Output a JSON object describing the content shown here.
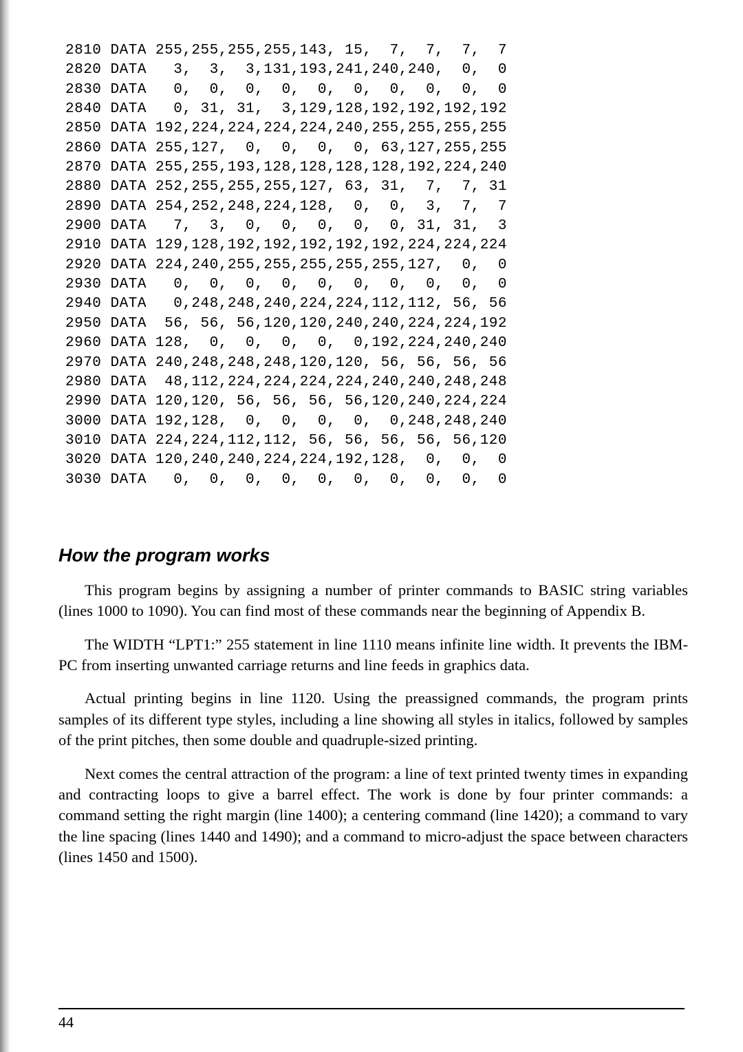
{
  "code": [
    "2810 DATA 255,255,255,255,143, 15,  7,  7,  7,  7",
    "2820 DATA   3,  3,  3,131,193,241,240,240,  0,  0",
    "2830 DATA   0,  0,  0,  0,  0,  0,  0,  0,  0,  0",
    "2840 DATA   0, 31, 31,  3,129,128,192,192,192,192",
    "2850 DATA 192,224,224,224,224,240,255,255,255,255",
    "2860 DATA 255,127,  0,  0,  0,  0, 63,127,255,255",
    "2870 DATA 255,255,193,128,128,128,128,192,224,240",
    "2880 DATA 252,255,255,255,127, 63, 31,  7,  7, 31",
    "2890 DATA 254,252,248,224,128,  0,  0,  3,  7,  7",
    "2900 DATA   7,  3,  0,  0,  0,  0,  0, 31, 31,  3",
    "2910 DATA 129,128,192,192,192,192,192,224,224,224",
    "2920 DATA 224,240,255,255,255,255,255,127,  0,  0",
    "2930 DATA   0,  0,  0,  0,  0,  0,  0,  0,  0,  0",
    "2940 DATA   0,248,248,240,224,224,112,112, 56, 56",
    "2950 DATA  56, 56, 56,120,120,240,240,224,224,192",
    "2960 DATA 128,  0,  0,  0,  0,  0,192,224,240,240",
    "2970 DATA 240,248,248,248,120,120, 56, 56, 56, 56",
    "2980 DATA  48,112,224,224,224,224,240,240,248,248",
    "2990 DATA 120,120, 56, 56, 56, 56,120,240,224,224",
    "3000 DATA 192,128,  0,  0,  0,  0,  0,248,248,240",
    "3010 DATA 224,224,112,112, 56, 56, 56, 56, 56,120",
    "3020 DATA 120,240,240,224,224,192,128,  0,  0,  0",
    "3030 DATA   0,  0,  0,  0,  0,  0,  0,  0,  0,  0"
  ],
  "heading": "How the program works",
  "paragraphs": [
    "This program begins by assigning a number of printer commands to BASIC string variables (lines 1000 to 1090). You can find most of these commands near the beginning of Appendix B.",
    "The WIDTH “LPT1:” 255 statement in line 1110 means infinite line width. It prevents the IBM-PC from inserting unwanted carriage returns and line feeds in graphics data.",
    "Actual printing begins in line 1120. Using the preassigned commands, the program prints samples of its different type styles, including a line showing all styles in italics, followed by samples of the print pitches, then some double and quadruple-sized printing.",
    "Next comes the central attraction of the program: a line of text printed twenty times in expanding and contracting loops to give a barrel effect. The work is done by four printer commands: a command setting the right margin (line 1400); a centering command (line 1420); a command to vary the line spacing (lines 1440 and 1490); and a command to micro-adjust the space between characters (lines 1450 and 1500)."
  ],
  "page_number": "44"
}
